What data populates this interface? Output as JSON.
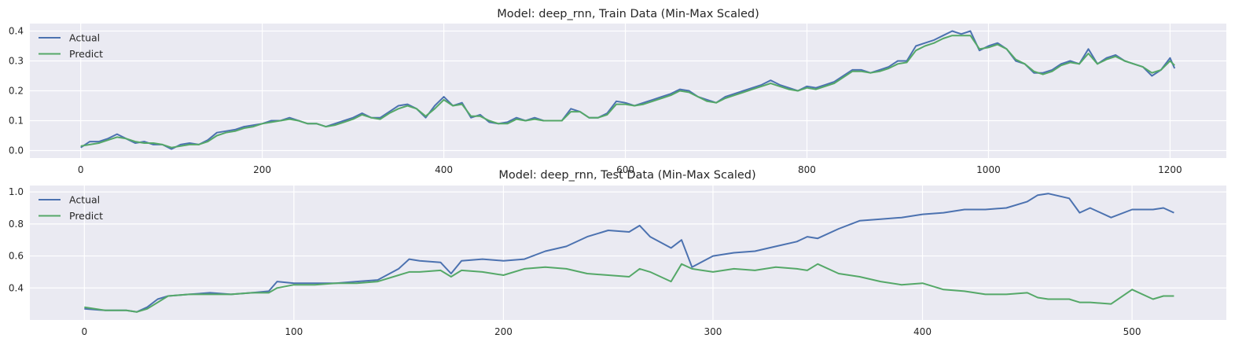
{
  "chart_data": [
    {
      "type": "line",
      "title": "Model: deep_rnn, Train Data (Min-Max Scaled)",
      "xlabel": "",
      "ylabel": "",
      "xlim": [
        -56,
        1262
      ],
      "ylim": [
        -0.025,
        0.425
      ],
      "x_ticks": [
        0,
        200,
        400,
        600,
        800,
        1000,
        1200
      ],
      "y_ticks": [
        0.0,
        0.1,
        0.2,
        0.3,
        0.4
      ],
      "y_tick_labels": [
        "0.0",
        "0.1",
        "0.2",
        "0.3",
        "0.4"
      ],
      "grid": true,
      "legend_position": "upper-left",
      "series": [
        {
          "name": "Actual",
          "color": "#4c72b0",
          "x": [
            0,
            10,
            20,
            30,
            40,
            50,
            60,
            70,
            80,
            90,
            100,
            110,
            120,
            130,
            140,
            150,
            160,
            170,
            180,
            190,
            200,
            210,
            220,
            230,
            240,
            250,
            260,
            270,
            280,
            290,
            300,
            310,
            320,
            330,
            340,
            350,
            360,
            370,
            380,
            390,
            400,
            410,
            420,
            430,
            440,
            450,
            460,
            470,
            480,
            490,
            500,
            510,
            520,
            530,
            540,
            550,
            560,
            570,
            580,
            590,
            600,
            610,
            620,
            630,
            640,
            650,
            660,
            670,
            680,
            690,
            700,
            710,
            720,
            730,
            740,
            750,
            760,
            770,
            780,
            790,
            800,
            810,
            820,
            830,
            840,
            850,
            860,
            870,
            880,
            890,
            900,
            910,
            920,
            930,
            940,
            950,
            960,
            970,
            980,
            990,
            1000,
            1010,
            1020,
            1030,
            1040,
            1050,
            1060,
            1070,
            1080,
            1090,
            1100,
            1110,
            1120,
            1130,
            1140,
            1150,
            1160,
            1170,
            1180,
            1190,
            1200,
            1205
          ],
          "values": [
            0.01,
            0.03,
            0.03,
            0.04,
            0.055,
            0.04,
            0.025,
            0.03,
            0.02,
            0.02,
            0.005,
            0.02,
            0.025,
            0.02,
            0.035,
            0.06,
            0.065,
            0.07,
            0.08,
            0.085,
            0.09,
            0.1,
            0.1,
            0.11,
            0.1,
            0.09,
            0.09,
            0.08,
            0.09,
            0.1,
            0.11,
            0.125,
            0.11,
            0.11,
            0.13,
            0.15,
            0.155,
            0.14,
            0.11,
            0.15,
            0.18,
            0.15,
            0.16,
            0.11,
            0.12,
            0.095,
            0.09,
            0.095,
            0.11,
            0.1,
            0.11,
            0.1,
            0.1,
            0.1,
            0.14,
            0.13,
            0.11,
            0.11,
            0.125,
            0.165,
            0.16,
            0.15,
            0.16,
            0.17,
            0.18,
            0.19,
            0.205,
            0.2,
            0.18,
            0.17,
            0.16,
            0.18,
            0.19,
            0.2,
            0.21,
            0.22,
            0.235,
            0.22,
            0.21,
            0.2,
            0.215,
            0.21,
            0.22,
            0.23,
            0.25,
            0.27,
            0.27,
            0.26,
            0.27,
            0.28,
            0.3,
            0.3,
            0.35,
            0.36,
            0.37,
            0.385,
            0.4,
            0.39,
            0.4,
            0.335,
            0.35,
            0.36,
            0.34,
            0.3,
            0.29,
            0.26,
            0.26,
            0.27,
            0.29,
            0.3,
            0.29,
            0.34,
            0.29,
            0.31,
            0.32,
            0.3,
            0.29,
            0.28,
            0.25,
            0.27,
            0.31,
            0.275
          ]
        },
        {
          "name": "Predict",
          "color": "#55a868",
          "x": [
            0,
            10,
            20,
            30,
            40,
            50,
            60,
            70,
            80,
            90,
            100,
            110,
            120,
            130,
            140,
            150,
            160,
            170,
            180,
            190,
            200,
            210,
            220,
            230,
            240,
            250,
            260,
            270,
            280,
            290,
            300,
            310,
            320,
            330,
            340,
            350,
            360,
            370,
            380,
            390,
            400,
            410,
            420,
            430,
            440,
            450,
            460,
            470,
            480,
            490,
            500,
            510,
            520,
            530,
            540,
            550,
            560,
            570,
            580,
            590,
            600,
            610,
            620,
            630,
            640,
            650,
            660,
            670,
            680,
            690,
            700,
            710,
            720,
            730,
            740,
            750,
            760,
            770,
            780,
            790,
            800,
            810,
            820,
            830,
            840,
            850,
            860,
            870,
            880,
            890,
            900,
            910,
            920,
            930,
            940,
            950,
            960,
            970,
            980,
            990,
            1000,
            1010,
            1020,
            1030,
            1040,
            1050,
            1060,
            1070,
            1080,
            1090,
            1100,
            1110,
            1120,
            1130,
            1140,
            1150,
            1160,
            1170,
            1180,
            1190,
            1200,
            1205
          ],
          "values": [
            0.015,
            0.02,
            0.025,
            0.035,
            0.045,
            0.04,
            0.03,
            0.025,
            0.025,
            0.02,
            0.01,
            0.015,
            0.02,
            0.02,
            0.03,
            0.05,
            0.06,
            0.065,
            0.075,
            0.08,
            0.09,
            0.095,
            0.1,
            0.105,
            0.1,
            0.09,
            0.09,
            0.08,
            0.085,
            0.095,
            0.105,
            0.12,
            0.11,
            0.105,
            0.125,
            0.14,
            0.15,
            0.14,
            0.115,
            0.14,
            0.17,
            0.15,
            0.155,
            0.115,
            0.115,
            0.1,
            0.09,
            0.09,
            0.105,
            0.1,
            0.105,
            0.1,
            0.1,
            0.1,
            0.13,
            0.13,
            0.11,
            0.11,
            0.12,
            0.155,
            0.155,
            0.15,
            0.155,
            0.165,
            0.175,
            0.185,
            0.2,
            0.195,
            0.18,
            0.165,
            0.16,
            0.175,
            0.185,
            0.195,
            0.205,
            0.215,
            0.225,
            0.215,
            0.205,
            0.2,
            0.21,
            0.205,
            0.215,
            0.225,
            0.245,
            0.265,
            0.265,
            0.26,
            0.265,
            0.275,
            0.29,
            0.295,
            0.335,
            0.35,
            0.36,
            0.375,
            0.385,
            0.385,
            0.385,
            0.34,
            0.345,
            0.355,
            0.34,
            0.305,
            0.29,
            0.265,
            0.255,
            0.265,
            0.285,
            0.295,
            0.29,
            0.325,
            0.29,
            0.305,
            0.315,
            0.3,
            0.29,
            0.28,
            0.26,
            0.27,
            0.3,
            0.285
          ]
        }
      ]
    },
    {
      "type": "line",
      "title": "Model: deep_rnn, Test Data (Min-Max Scaled)",
      "xlabel": "",
      "ylabel": "",
      "xlim": [
        -26,
        545
      ],
      "ylim": [
        0.2,
        1.04
      ],
      "x_ticks": [
        0,
        100,
        200,
        300,
        400,
        500
      ],
      "y_ticks": [
        0.4,
        0.6,
        0.8,
        1.0
      ],
      "y_tick_labels": [
        "0.4",
        "0.6",
        "0.8",
        "1.0"
      ],
      "grid": true,
      "legend_position": "upper-left",
      "series": [
        {
          "name": "Actual",
          "color": "#4c72b0",
          "x": [
            0,
            10,
            20,
            25,
            30,
            35,
            40,
            50,
            60,
            70,
            80,
            88,
            92,
            100,
            110,
            120,
            130,
            140,
            150,
            155,
            160,
            170,
            175,
            180,
            190,
            200,
            210,
            220,
            230,
            240,
            250,
            260,
            265,
            270,
            280,
            285,
            290,
            300,
            310,
            320,
            330,
            340,
            345,
            350,
            360,
            370,
            380,
            390,
            400,
            410,
            420,
            430,
            440,
            450,
            455,
            460,
            470,
            475,
            480,
            490,
            500,
            510,
            515,
            520
          ],
          "values": [
            0.27,
            0.26,
            0.26,
            0.25,
            0.28,
            0.33,
            0.35,
            0.36,
            0.37,
            0.36,
            0.37,
            0.38,
            0.44,
            0.43,
            0.43,
            0.43,
            0.44,
            0.45,
            0.52,
            0.58,
            0.57,
            0.56,
            0.49,
            0.57,
            0.58,
            0.57,
            0.58,
            0.63,
            0.66,
            0.72,
            0.76,
            0.75,
            0.79,
            0.72,
            0.65,
            0.7,
            0.53,
            0.6,
            0.62,
            0.63,
            0.66,
            0.69,
            0.72,
            0.71,
            0.77,
            0.82,
            0.83,
            0.84,
            0.86,
            0.87,
            0.89,
            0.89,
            0.9,
            0.94,
            0.98,
            0.99,
            0.96,
            0.87,
            0.9,
            0.84,
            0.89,
            0.89,
            0.9,
            0.87
          ]
        },
        {
          "name": "Predict",
          "color": "#55a868",
          "x": [
            0,
            10,
            20,
            25,
            30,
            35,
            40,
            50,
            60,
            70,
            80,
            88,
            92,
            100,
            110,
            120,
            130,
            140,
            150,
            155,
            160,
            170,
            175,
            180,
            190,
            200,
            210,
            220,
            230,
            240,
            250,
            260,
            265,
            270,
            280,
            285,
            290,
            300,
            310,
            320,
            330,
            340,
            345,
            350,
            360,
            370,
            380,
            390,
            400,
            410,
            420,
            430,
            440,
            450,
            455,
            460,
            470,
            475,
            480,
            490,
            500,
            510,
            515,
            520
          ],
          "values": [
            0.28,
            0.26,
            0.26,
            0.25,
            0.27,
            0.31,
            0.35,
            0.36,
            0.36,
            0.36,
            0.37,
            0.37,
            0.4,
            0.42,
            0.42,
            0.43,
            0.43,
            0.44,
            0.48,
            0.5,
            0.5,
            0.51,
            0.47,
            0.51,
            0.5,
            0.48,
            0.52,
            0.53,
            0.52,
            0.49,
            0.48,
            0.47,
            0.52,
            0.5,
            0.44,
            0.55,
            0.52,
            0.5,
            0.52,
            0.51,
            0.53,
            0.52,
            0.51,
            0.55,
            0.49,
            0.47,
            0.44,
            0.42,
            0.43,
            0.39,
            0.38,
            0.36,
            0.36,
            0.37,
            0.34,
            0.33,
            0.33,
            0.31,
            0.31,
            0.3,
            0.39,
            0.33,
            0.35,
            0.35
          ]
        }
      ]
    }
  ],
  "colors": {
    "plot_background": "#eaeaf2",
    "grid": "#ffffff",
    "actual": "#4c72b0",
    "predict": "#55a868",
    "text": "#262626"
  }
}
